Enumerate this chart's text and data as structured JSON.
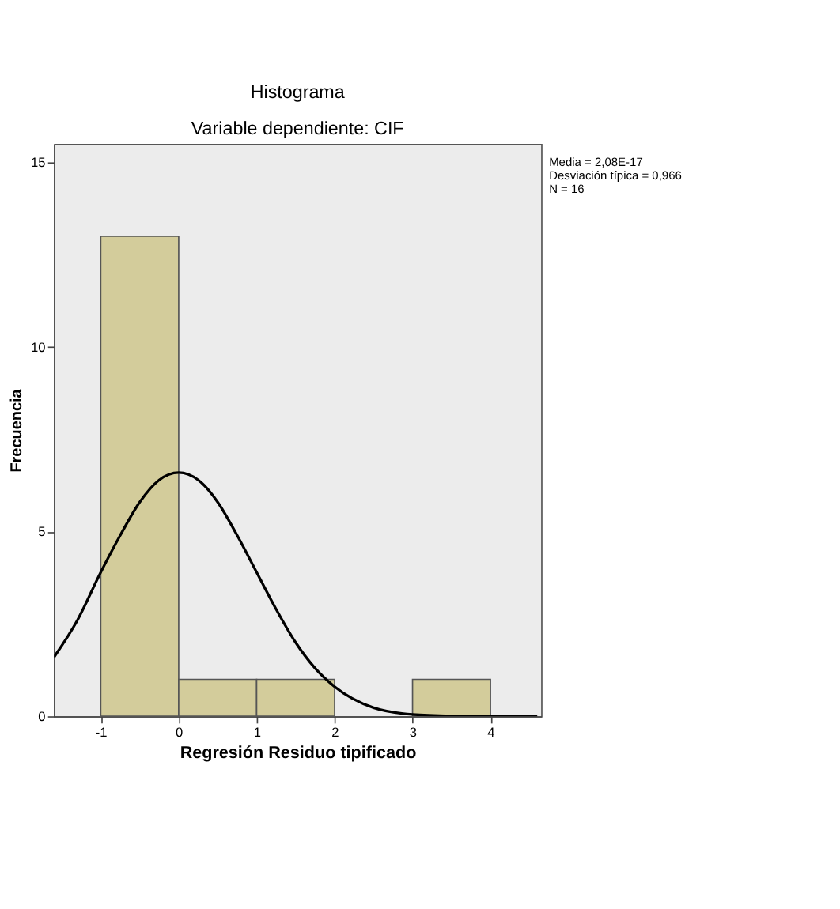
{
  "chart_data": {
    "type": "histogram",
    "title": "Histograma",
    "subtitle": "Variable dependiente: CIF",
    "xlabel": "Regresión Residuo tipificado",
    "ylabel": "Frecuencia",
    "bins": [
      -1,
      0,
      1,
      2,
      3,
      4
    ],
    "values": [
      13,
      1,
      1,
      0,
      1
    ],
    "color": "#d3cc9b",
    "series": [
      {
        "type": "line",
        "color": "#000000",
        "x": [
          -1.6,
          -1.3,
          -1,
          -0.75,
          -0.5,
          -0.25,
          0,
          0.25,
          0.5,
          0.75,
          1,
          1.25,
          1.5,
          1.75,
          2,
          2.5,
          3,
          3.5,
          4,
          4.6
        ],
        "values": [
          1.6,
          2.6,
          3.9,
          4.9,
          5.8,
          6.4,
          6.6,
          6.4,
          5.8,
          4.9,
          3.9,
          2.9,
          2.0,
          1.3,
          0.8,
          0.23,
          0.05,
          0.01,
          0.0,
          0.0
        ]
      }
    ],
    "xlim": [
      -1.6,
      4.65
    ],
    "ylim": [
      0,
      15.5
    ],
    "xticks": [
      -1,
      0,
      1,
      2,
      3,
      4
    ],
    "yticks": [
      0,
      5,
      10,
      15
    ],
    "grid": false,
    "annotations": [
      "Media = 2,08E-17",
      "Desviación típica = 0,966",
      "N = 16"
    ]
  }
}
